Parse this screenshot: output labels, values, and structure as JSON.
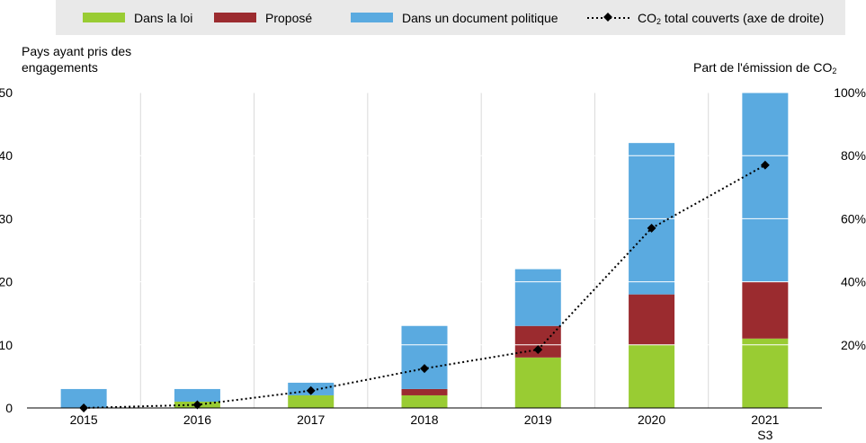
{
  "legend": {
    "law": "Dans la loi",
    "proposed": "Proposé",
    "policy": "Dans un document politique",
    "co2_prefix": "CO",
    "co2_sub": "2",
    "co2_suffix": " total couverts (axe de droite)"
  },
  "left_axis_title": {
    "line1": "Pays ayant pris des",
    "line2": "engagements"
  },
  "right_axis_title": {
    "prefix": "Part de l'émission de CO",
    "sub": "2"
  },
  "colors": {
    "law": "#99cc33",
    "proposed": "#9b2b2f",
    "policy": "#5aaae0",
    "line": "#000000",
    "legend_bg": "#e9e9e9",
    "grid": "#ffffff",
    "plot_bg": "#ffffff"
  },
  "chart_data": {
    "type": "bar",
    "stacked": true,
    "categories": [
      "2015",
      "2016",
      "2017",
      "2018",
      "2019",
      "2020",
      "2021\nS3"
    ],
    "series": [
      {
        "name": "Dans la loi",
        "values": [
          0,
          1,
          2,
          2,
          8,
          10,
          11
        ]
      },
      {
        "name": "Proposé",
        "values": [
          0,
          0,
          0,
          1,
          5,
          8,
          9
        ]
      },
      {
        "name": "Dans un document politique",
        "values": [
          3,
          2,
          2,
          10,
          9,
          24,
          30
        ]
      }
    ],
    "line_series": {
      "name": "CO2 total couverts (axe de droite)",
      "axis": "right",
      "values": [
        0,
        1,
        5.5,
        12.5,
        18.5,
        57,
        77
      ]
    },
    "ylim": [
      0,
      50
    ],
    "yticks": [
      "0",
      "10",
      "20",
      "30",
      "40",
      "50"
    ],
    "y2lim": [
      0,
      100
    ],
    "y2ticks": [
      "20%",
      "40%",
      "60%",
      "80%",
      "100%"
    ],
    "ylabel": "Pays ayant pris des engagements",
    "y2label": "Part de l'émission de CO2",
    "legend_position": "top"
  }
}
